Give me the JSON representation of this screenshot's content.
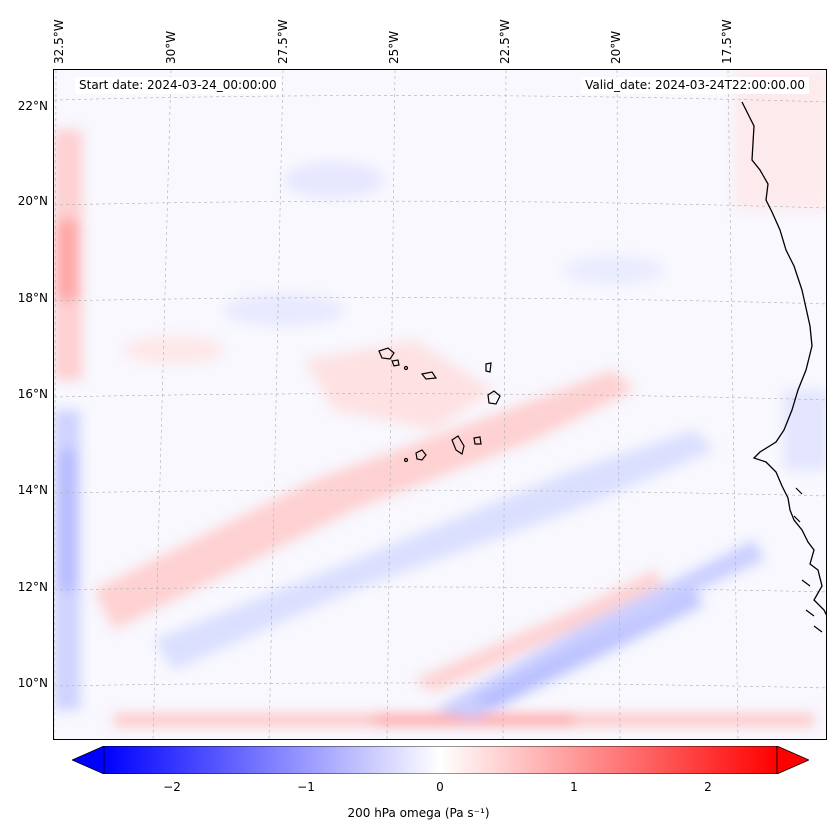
{
  "header": {
    "start_date": "Start date: 2024-03-24_00:00:00",
    "valid_date": "Valid_date: 2024-03-24T22:00:00.00"
  },
  "axes": {
    "longitude_labels": [
      "32.5°W",
      "30°W",
      "27.5°W",
      "25°W",
      "22.5°W",
      "20°W",
      "17.5°W"
    ],
    "latitude_labels": [
      "22°N",
      "20°N",
      "18°N",
      "16°N",
      "14°N",
      "12°N",
      "10°N"
    ]
  },
  "colorbar": {
    "label": "200 hPa omega (Pa s⁻¹)",
    "ticks": [
      "−2",
      "−1",
      "0",
      "1",
      "2"
    ],
    "min": -2.7,
    "max": 2.7,
    "extend": "both",
    "colormap": "bwr",
    "colors": {
      "negative": "#0000ff",
      "zero": "#ffffff",
      "positive": "#ff0000"
    }
  },
  "colors": {
    "coastline": "#000000",
    "gridline": "#b0b0b0",
    "background_field": "#f8f8fe"
  }
}
